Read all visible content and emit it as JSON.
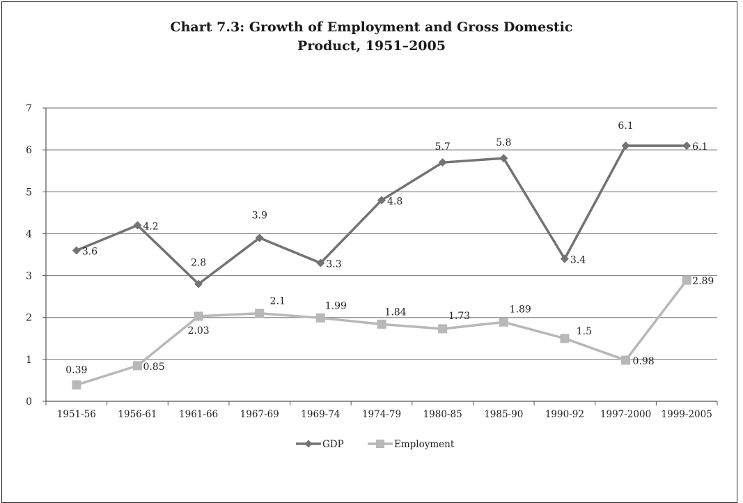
{
  "chart_data": {
    "type": "line",
    "title_line1": "Chart 7.3: Growth of Employment and Gross Domestic",
    "title_line2": "Product, 1951–2005",
    "categories": [
      "1951-56",
      "1956-61",
      "1961-66",
      "1967-69",
      "1969-74",
      "1974-79",
      "1980-85",
      "1985-90",
      "1990-92",
      "1997-2000",
      "1999-2005"
    ],
    "series": [
      {
        "name": "GDP",
        "color": "#737373",
        "marker": "diamond",
        "values": [
          3.6,
          4.2,
          2.8,
          3.9,
          3.3,
          4.8,
          5.7,
          5.8,
          3.4,
          6.1,
          6.1
        ],
        "labels": [
          "3.6",
          "4.2",
          "2.8",
          "3.9",
          "3.3",
          "4.8",
          "5.7",
          "5.8",
          "3.4",
          "6.1",
          "6.1"
        ]
      },
      {
        "name": "Employment",
        "color": "#b8b8b8",
        "marker": "square",
        "values": [
          0.39,
          0.85,
          2.03,
          2.1,
          1.99,
          1.84,
          1.73,
          1.89,
          1.5,
          0.98,
          2.89
        ],
        "labels": [
          "0.39",
          "0.85",
          "2.03",
          "2.1",
          "1.99",
          "1.84",
          "1.73",
          "1.89",
          "1.5",
          "0.98",
          "2.89"
        ]
      }
    ],
    "ylim": [
      0,
      7
    ],
    "yticks": [
      "0",
      "1",
      "2",
      "3",
      "4",
      "5",
      "6",
      "7"
    ],
    "grid": true,
    "legend_position": "bottom-center"
  }
}
